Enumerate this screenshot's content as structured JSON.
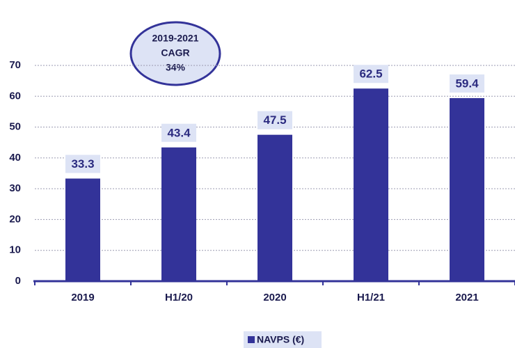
{
  "chart_data": {
    "type": "bar",
    "categories": [
      "2019",
      "H1/20",
      "2020",
      "H1/21",
      "2021"
    ],
    "series": [
      {
        "name": "NAVPS (€)",
        "color": "#333399",
        "values": [
          33.3,
          43.4,
          47.5,
          62.5,
          59.4
        ]
      }
    ],
    "ylim": [
      0,
      70
    ],
    "yticks": [
      0,
      10,
      20,
      30,
      40,
      50,
      60,
      70
    ],
    "grid": true,
    "annotation": [
      "2019-2021",
      "CAGR",
      "34%"
    ],
    "legend": "bottom"
  }
}
